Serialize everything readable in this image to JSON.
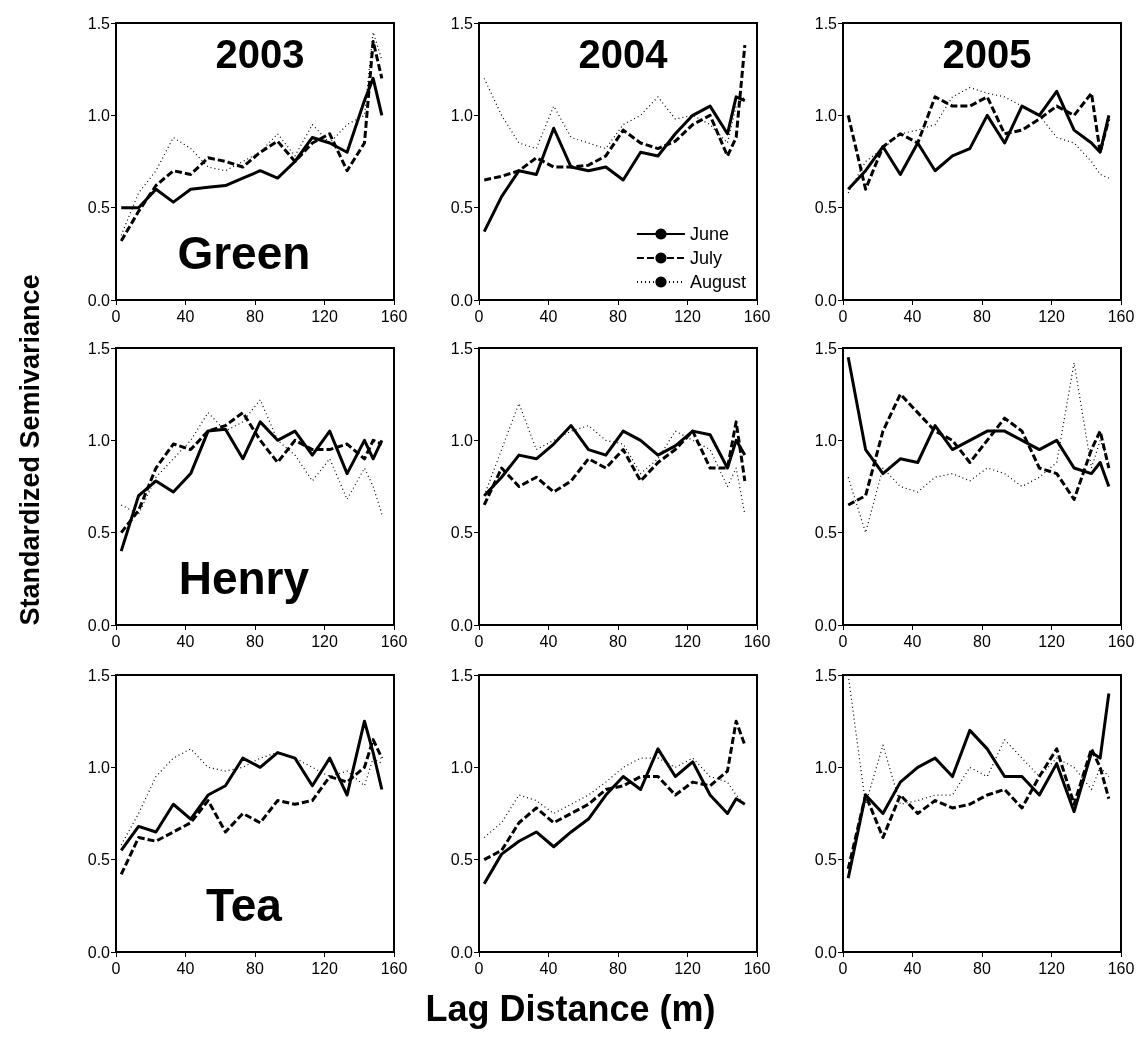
{
  "chart_data": [
    {
      "type": "line",
      "title": "2003",
      "annotations": [
        "Green"
      ],
      "x": [
        3,
        13,
        23,
        33,
        43,
        53,
        63,
        73,
        83,
        93,
        103,
        113,
        123,
        133,
        143,
        148,
        153
      ],
      "xlim": [
        0,
        160
      ],
      "xticks": [
        0,
        40,
        80,
        120,
        160
      ],
      "ylim": [
        0,
        1.5
      ],
      "yticks": [
        {
          "value": 0,
          "label": "0.0"
        },
        {
          "value": 0.5,
          "label": "0.5"
        },
        {
          "value": 1,
          "label": "1.0"
        },
        {
          "value": 1.5,
          "label": "1.5"
        }
      ],
      "grid": false,
      "legend": false,
      "marker": "none",
      "series": [
        {
          "color": "#000000",
          "line_style": "solid",
          "values": [
            0.5,
            0.5,
            0.6,
            0.53,
            0.6,
            0.61,
            0.62,
            0.66,
            0.7,
            0.66,
            0.75,
            0.88,
            0.85,
            0.8,
            1.08,
            1.2,
            1.0
          ]
        },
        {
          "color": "#000000",
          "line_style": "dashed",
          "values": [
            0.32,
            0.48,
            0.62,
            0.7,
            0.68,
            0.77,
            0.75,
            0.72,
            0.8,
            0.86,
            0.75,
            0.85,
            0.9,
            0.7,
            0.85,
            1.4,
            1.2
          ]
        },
        {
          "color": "#000000",
          "line_style": "dotted",
          "values": [
            0.35,
            0.58,
            0.7,
            0.88,
            0.82,
            0.72,
            0.7,
            0.75,
            0.8,
            0.9,
            0.78,
            0.95,
            0.85,
            0.95,
            1.0,
            1.45,
            1.3
          ]
        }
      ]
    },
    {
      "type": "line",
      "title": "2004",
      "x": [
        3,
        13,
        23,
        33,
        43,
        53,
        63,
        73,
        83,
        93,
        103,
        113,
        123,
        133,
        143,
        148,
        153
      ],
      "xlim": [
        0,
        160
      ],
      "xticks": [
        0,
        40,
        80,
        120,
        160
      ],
      "ylim": [
        0,
        1.5
      ],
      "yticks": [
        {
          "value": 0,
          "label": "0.0"
        },
        {
          "value": 0.5,
          "label": "0.5"
        },
        {
          "value": 1,
          "label": "1.0"
        },
        {
          "value": 1.5,
          "label": "1.5"
        }
      ],
      "grid": false,
      "legend": "bottom right",
      "marker": "none",
      "series": [
        {
          "name": "June",
          "color": "#000000",
          "line_style": "solid",
          "values": [
            0.37,
            0.56,
            0.7,
            0.68,
            0.93,
            0.72,
            0.7,
            0.72,
            0.65,
            0.8,
            0.78,
            0.9,
            1.0,
            1.05,
            0.9,
            1.1,
            1.08
          ]
        },
        {
          "name": "July",
          "color": "#000000",
          "line_style": "dashed",
          "values": [
            0.65,
            0.67,
            0.7,
            0.77,
            0.72,
            0.72,
            0.73,
            0.78,
            0.92,
            0.85,
            0.82,
            0.86,
            0.95,
            1.0,
            0.78,
            0.88,
            1.38
          ]
        },
        {
          "name": "August",
          "color": "#000000",
          "line_style": "dotted",
          "values": [
            1.2,
            1.0,
            0.85,
            0.82,
            1.05,
            0.88,
            0.85,
            0.82,
            0.95,
            1.0,
            1.1,
            0.98,
            1.0,
            0.95,
            0.85,
            1.05,
            1.1
          ]
        }
      ]
    },
    {
      "type": "line",
      "title": "2005",
      "x": [
        3,
        13,
        23,
        33,
        43,
        53,
        63,
        73,
        83,
        93,
        103,
        113,
        123,
        133,
        143,
        148,
        153
      ],
      "xlim": [
        0,
        160
      ],
      "xticks": [
        0,
        40,
        80,
        120,
        160
      ],
      "ylim": [
        0,
        1.5
      ],
      "yticks": [
        {
          "value": 0,
          "label": "0.0"
        },
        {
          "value": 0.5,
          "label": "0.5"
        },
        {
          "value": 1,
          "label": "1.0"
        },
        {
          "value": 1.5,
          "label": "1.5"
        }
      ],
      "grid": false,
      "legend": false,
      "marker": "none",
      "series": [
        {
          "color": "#000000",
          "line_style": "solid",
          "values": [
            0.6,
            0.7,
            0.83,
            0.68,
            0.85,
            0.7,
            0.78,
            0.82,
            1.0,
            0.85,
            1.05,
            1.0,
            1.13,
            0.92,
            0.85,
            0.8,
            1.0
          ]
        },
        {
          "color": "#000000",
          "line_style": "dashed",
          "values": [
            1.0,
            0.6,
            0.83,
            0.9,
            0.85,
            1.1,
            1.05,
            1.05,
            1.1,
            0.9,
            0.92,
            0.98,
            1.05,
            1.0,
            1.12,
            0.8,
            0.98
          ]
        },
        {
          "color": "#000000",
          "line_style": "dotted",
          "values": [
            0.58,
            0.75,
            0.82,
            0.9,
            0.92,
            0.95,
            1.1,
            1.15,
            1.12,
            1.1,
            1.05,
            1.0,
            0.88,
            0.85,
            0.75,
            0.68,
            0.66
          ]
        }
      ]
    },
    {
      "type": "line",
      "annotations": [
        "Henry"
      ],
      "ylabel": "Standardized Semivariance",
      "x": [
        3,
        13,
        23,
        33,
        43,
        53,
        63,
        73,
        83,
        93,
        103,
        113,
        123,
        133,
        143,
        148,
        153
      ],
      "xlim": [
        0,
        160
      ],
      "xticks": [
        0,
        40,
        80,
        120,
        160
      ],
      "ylim": [
        0,
        1.5
      ],
      "yticks": [
        {
          "value": 0,
          "label": "0.0"
        },
        {
          "value": 0.5,
          "label": "0.5"
        },
        {
          "value": 1,
          "label": "1.0"
        },
        {
          "value": 1.5,
          "label": "1.5"
        }
      ],
      "grid": false,
      "legend": false,
      "marker": "none",
      "series": [
        {
          "color": "#000000",
          "line_style": "solid",
          "values": [
            0.4,
            0.7,
            0.78,
            0.72,
            0.82,
            1.05,
            1.06,
            0.9,
            1.1,
            1.0,
            1.05,
            0.92,
            1.05,
            0.82,
            1.0,
            0.9,
            1.0
          ]
        },
        {
          "color": "#000000",
          "line_style": "dashed",
          "values": [
            0.5,
            0.62,
            0.85,
            0.98,
            0.95,
            1.05,
            1.08,
            1.15,
            1.0,
            0.88,
            1.0,
            0.95,
            0.95,
            0.98,
            0.9,
            1.0,
            0.98
          ]
        },
        {
          "color": "#000000",
          "line_style": "dotted",
          "values": [
            0.65,
            0.6,
            0.8,
            0.9,
            1.0,
            1.15,
            1.05,
            1.1,
            1.22,
            1.0,
            0.92,
            0.78,
            0.9,
            0.68,
            0.85,
            0.75,
            0.6
          ]
        }
      ]
    },
    {
      "type": "line",
      "x": [
        3,
        13,
        23,
        33,
        43,
        53,
        63,
        73,
        83,
        93,
        103,
        113,
        123,
        133,
        143,
        148,
        153
      ],
      "xlim": [
        0,
        160
      ],
      "xticks": [
        0,
        40,
        80,
        120,
        160
      ],
      "ylim": [
        0,
        1.5
      ],
      "yticks": [
        {
          "value": 0,
          "label": "0.0"
        },
        {
          "value": 0.5,
          "label": "0.5"
        },
        {
          "value": 1,
          "label": "1.0"
        },
        {
          "value": 1.5,
          "label": "1.5"
        }
      ],
      "grid": false,
      "legend": false,
      "marker": "none",
      "series": [
        {
          "color": "#000000",
          "line_style": "solid",
          "values": [
            0.7,
            0.8,
            0.92,
            0.9,
            0.98,
            1.08,
            0.95,
            0.92,
            1.05,
            1.0,
            0.92,
            0.97,
            1.05,
            1.03,
            0.85,
            1.0,
            0.92
          ]
        },
        {
          "color": "#000000",
          "line_style": "dashed",
          "values": [
            0.65,
            0.85,
            0.75,
            0.8,
            0.72,
            0.78,
            0.9,
            0.85,
            0.95,
            0.78,
            0.88,
            0.95,
            1.05,
            0.85,
            0.85,
            1.1,
            0.78
          ]
        },
        {
          "color": "#000000",
          "line_style": "dotted",
          "values": [
            0.7,
            0.95,
            1.2,
            0.95,
            1.0,
            1.05,
            1.08,
            1.0,
            0.98,
            0.82,
            0.9,
            1.05,
            1.0,
            0.95,
            0.75,
            0.85,
            0.6
          ]
        }
      ]
    },
    {
      "type": "line",
      "x": [
        3,
        13,
        23,
        33,
        43,
        53,
        63,
        73,
        83,
        93,
        103,
        113,
        123,
        133,
        143,
        148,
        153
      ],
      "xlim": [
        0,
        160
      ],
      "xticks": [
        0,
        40,
        80,
        120,
        160
      ],
      "ylim": [
        0,
        1.5
      ],
      "yticks": [
        {
          "value": 0,
          "label": "0.0"
        },
        {
          "value": 0.5,
          "label": "0.5"
        },
        {
          "value": 1,
          "label": "1.0"
        },
        {
          "value": 1.5,
          "label": "1.5"
        }
      ],
      "grid": false,
      "legend": false,
      "marker": "none",
      "series": [
        {
          "color": "#000000",
          "line_style": "solid",
          "values": [
            1.45,
            0.95,
            0.82,
            0.9,
            0.88,
            1.08,
            0.95,
            1.0,
            1.05,
            1.05,
            1.0,
            0.95,
            1.0,
            0.85,
            0.82,
            0.88,
            0.75
          ]
        },
        {
          "color": "#000000",
          "line_style": "dashed",
          "values": [
            0.65,
            0.7,
            1.05,
            1.25,
            1.15,
            1.05,
            1.0,
            0.88,
            1.0,
            1.12,
            1.05,
            0.85,
            0.82,
            0.68,
            0.95,
            1.05,
            0.85
          ]
        },
        {
          "color": "#000000",
          "line_style": "dotted",
          "values": [
            0.8,
            0.5,
            0.85,
            0.75,
            0.72,
            0.8,
            0.82,
            0.78,
            0.85,
            0.82,
            0.75,
            0.8,
            0.88,
            1.42,
            0.85,
            1.0,
            0.88
          ]
        }
      ]
    },
    {
      "type": "line",
      "annotations": [
        "Tea"
      ],
      "x": [
        3,
        13,
        23,
        33,
        43,
        53,
        63,
        73,
        83,
        93,
        103,
        113,
        123,
        133,
        143,
        148,
        153
      ],
      "xlim": [
        0,
        160
      ],
      "xticks": [
        0,
        40,
        80,
        120,
        160
      ],
      "ylim": [
        0,
        1.5
      ],
      "yticks": [
        {
          "value": 0,
          "label": "0.0"
        },
        {
          "value": 0.5,
          "label": "0.5"
        },
        {
          "value": 1,
          "label": "1.0"
        },
        {
          "value": 1.5,
          "label": "1.5"
        }
      ],
      "grid": false,
      "legend": false,
      "marker": "none",
      "series": [
        {
          "color": "#000000",
          "line_style": "solid",
          "values": [
            0.55,
            0.68,
            0.65,
            0.8,
            0.72,
            0.85,
            0.9,
            1.05,
            1.0,
            1.08,
            1.05,
            0.9,
            1.05,
            0.85,
            1.25,
            1.08,
            0.88
          ]
        },
        {
          "color": "#000000",
          "line_style": "dashed",
          "values": [
            0.42,
            0.62,
            0.6,
            0.65,
            0.7,
            0.82,
            0.65,
            0.75,
            0.7,
            0.82,
            0.8,
            0.82,
            0.95,
            0.92,
            1.0,
            1.15,
            1.05
          ]
        },
        {
          "color": "#000000",
          "line_style": "dotted",
          "values": [
            0.58,
            0.75,
            0.95,
            1.05,
            1.1,
            1.0,
            0.98,
            1.0,
            1.05,
            1.08,
            1.05,
            1.0,
            0.95,
            0.98,
            0.9,
            1.05,
            1.02
          ]
        }
      ]
    },
    {
      "type": "line",
      "xlabel": "Lag Distance (m)",
      "x": [
        3,
        13,
        23,
        33,
        43,
        53,
        63,
        73,
        83,
        93,
        103,
        113,
        123,
        133,
        143,
        148,
        153
      ],
      "xlim": [
        0,
        160
      ],
      "xticks": [
        0,
        40,
        80,
        120,
        160
      ],
      "ylim": [
        0,
        1.5
      ],
      "yticks": [
        {
          "value": 0,
          "label": "0.0"
        },
        {
          "value": 0.5,
          "label": "0.5"
        },
        {
          "value": 1,
          "label": "1.0"
        },
        {
          "value": 1.5,
          "label": "1.5"
        }
      ],
      "grid": false,
      "legend": false,
      "marker": "none",
      "series": [
        {
          "color": "#000000",
          "line_style": "solid",
          "values": [
            0.37,
            0.53,
            0.6,
            0.65,
            0.57,
            0.65,
            0.72,
            0.85,
            0.95,
            0.88,
            1.1,
            0.95,
            1.03,
            0.85,
            0.75,
            0.83,
            0.8
          ]
        },
        {
          "color": "#000000",
          "line_style": "dashed",
          "values": [
            0.5,
            0.55,
            0.7,
            0.78,
            0.7,
            0.75,
            0.8,
            0.88,
            0.9,
            0.95,
            0.95,
            0.85,
            0.92,
            0.9,
            0.98,
            1.25,
            1.12
          ]
        },
        {
          "color": "#000000",
          "line_style": "dotted",
          "values": [
            0.62,
            0.7,
            0.85,
            0.82,
            0.75,
            0.8,
            0.85,
            0.92,
            1.0,
            1.05,
            1.05,
            1.0,
            1.05,
            0.95,
            0.92,
            0.85,
            0.8
          ]
        }
      ]
    },
    {
      "type": "line",
      "x": [
        3,
        13,
        23,
        33,
        43,
        53,
        63,
        73,
        83,
        93,
        103,
        113,
        123,
        133,
        143,
        148,
        153
      ],
      "xlim": [
        0,
        160
      ],
      "xticks": [
        0,
        40,
        80,
        120,
        160
      ],
      "ylim": [
        0,
        1.5
      ],
      "yticks": [
        {
          "value": 0,
          "label": "0.0"
        },
        {
          "value": 0.5,
          "label": "0.5"
        },
        {
          "value": 1,
          "label": "1.0"
        },
        {
          "value": 1.5,
          "label": "1.5"
        }
      ],
      "grid": false,
      "legend": false,
      "marker": "none",
      "series": [
        {
          "color": "#000000",
          "line_style": "solid",
          "values": [
            0.4,
            0.85,
            0.75,
            0.92,
            1.0,
            1.05,
            0.95,
            1.2,
            1.1,
            0.95,
            0.95,
            0.85,
            1.02,
            0.76,
            1.08,
            1.05,
            1.4
          ]
        },
        {
          "color": "#000000",
          "line_style": "dashed",
          "values": [
            0.45,
            0.85,
            0.62,
            0.85,
            0.75,
            0.82,
            0.78,
            0.8,
            0.85,
            0.88,
            0.78,
            0.95,
            1.1,
            0.8,
            1.1,
            1.0,
            0.83
          ]
        },
        {
          "color": "#000000",
          "line_style": "dotted",
          "values": [
            1.5,
            0.8,
            1.12,
            0.8,
            0.82,
            0.85,
            0.85,
            1.0,
            0.95,
            1.15,
            1.05,
            0.95,
            1.05,
            1.0,
            0.88,
            1.0,
            0.95
          ]
        }
      ]
    }
  ]
}
